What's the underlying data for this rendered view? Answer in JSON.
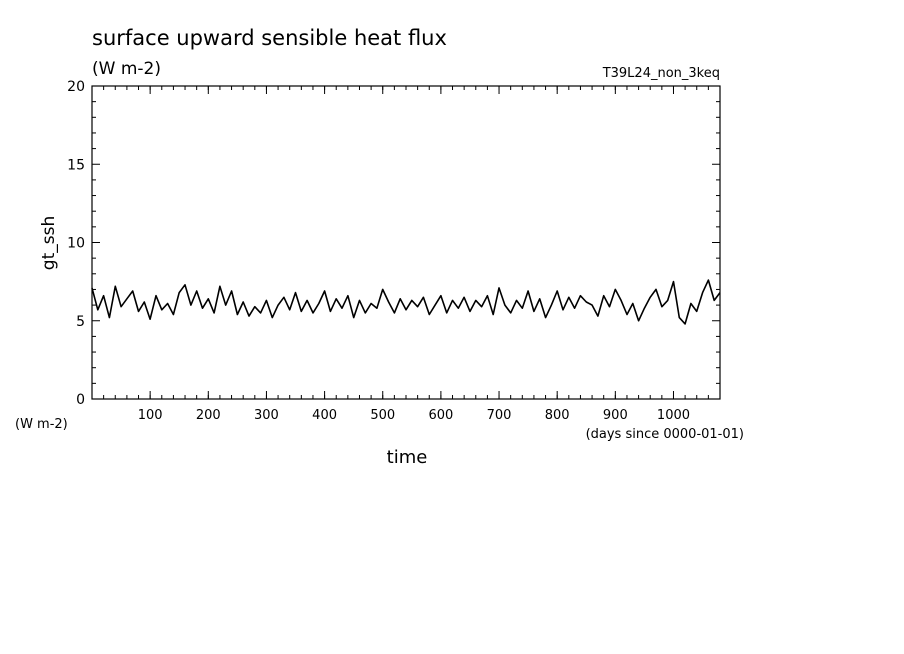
{
  "chart_data": {
    "type": "line",
    "title": "surface upward sensible heat flux",
    "subtitle": "(W m-2)",
    "run_label": "T39L24_non_3keq",
    "ylabel": "gt_ssh",
    "y_unit_label": "(W m-2)",
    "xlabel": "time",
    "x_unit_label": "(days since 0000-01-01)",
    "xlim": [
      0,
      1080
    ],
    "ylim": [
      0,
      20
    ],
    "x_ticks": [
      100,
      200,
      300,
      400,
      500,
      600,
      700,
      800,
      900,
      1000
    ],
    "y_ticks": [
      0,
      5,
      10,
      15,
      20
    ],
    "grid": false,
    "line_color": "#000000",
    "series": [
      {
        "x": [
          0,
          10,
          20,
          30,
          40,
          50,
          60,
          70,
          80,
          90,
          100,
          110,
          120,
          130,
          140,
          150,
          160,
          170,
          180,
          190,
          200,
          210,
          220,
          230,
          240,
          250,
          260,
          270,
          280,
          290,
          300,
          310,
          320,
          330,
          340,
          350,
          360,
          370,
          380,
          390,
          400,
          410,
          420,
          430,
          440,
          450,
          460,
          470,
          480,
          490,
          500,
          510,
          520,
          530,
          540,
          550,
          560,
          570,
          580,
          590,
          600,
          610,
          620,
          630,
          640,
          650,
          660,
          670,
          680,
          690,
          700,
          710,
          720,
          730,
          740,
          750,
          760,
          770,
          780,
          790,
          800,
          810,
          820,
          830,
          840,
          850,
          860,
          870,
          880,
          890,
          900,
          910,
          920,
          930,
          940,
          950,
          960,
          970,
          980,
          990,
          1000,
          1010,
          1020,
          1030,
          1040,
          1050,
          1060,
          1070,
          1080
        ],
        "values": [
          7.1,
          5.7,
          6.6,
          5.2,
          7.2,
          5.9,
          6.4,
          6.9,
          5.6,
          6.2,
          5.1,
          6.6,
          5.7,
          6.1,
          5.4,
          6.8,
          7.3,
          6.0,
          6.9,
          5.8,
          6.4,
          5.5,
          7.2,
          6.0,
          6.9,
          5.4,
          6.2,
          5.3,
          5.9,
          5.5,
          6.3,
          5.2,
          6.0,
          6.5,
          5.7,
          6.8,
          5.6,
          6.3,
          5.5,
          6.1,
          6.9,
          5.6,
          6.4,
          5.8,
          6.6,
          5.2,
          6.3,
          5.5,
          6.1,
          5.8,
          7.0,
          6.2,
          5.5,
          6.4,
          5.7,
          6.3,
          5.9,
          6.5,
          5.4,
          6.0,
          6.6,
          5.5,
          6.3,
          5.8,
          6.5,
          5.6,
          6.3,
          5.9,
          6.6,
          5.4,
          7.1,
          6.0,
          5.5,
          6.3,
          5.8,
          6.9,
          5.6,
          6.4,
          5.2,
          6.0,
          6.9,
          5.7,
          6.5,
          5.8,
          6.6,
          6.2,
          6.0,
          5.3,
          6.6,
          5.9,
          7.0,
          6.3,
          5.4,
          6.1,
          5.0,
          5.8,
          6.5,
          7.0,
          5.9,
          6.3,
          7.5,
          5.2,
          4.8,
          6.1,
          5.6,
          6.8,
          7.6,
          6.3,
          6.8
        ]
      }
    ]
  }
}
